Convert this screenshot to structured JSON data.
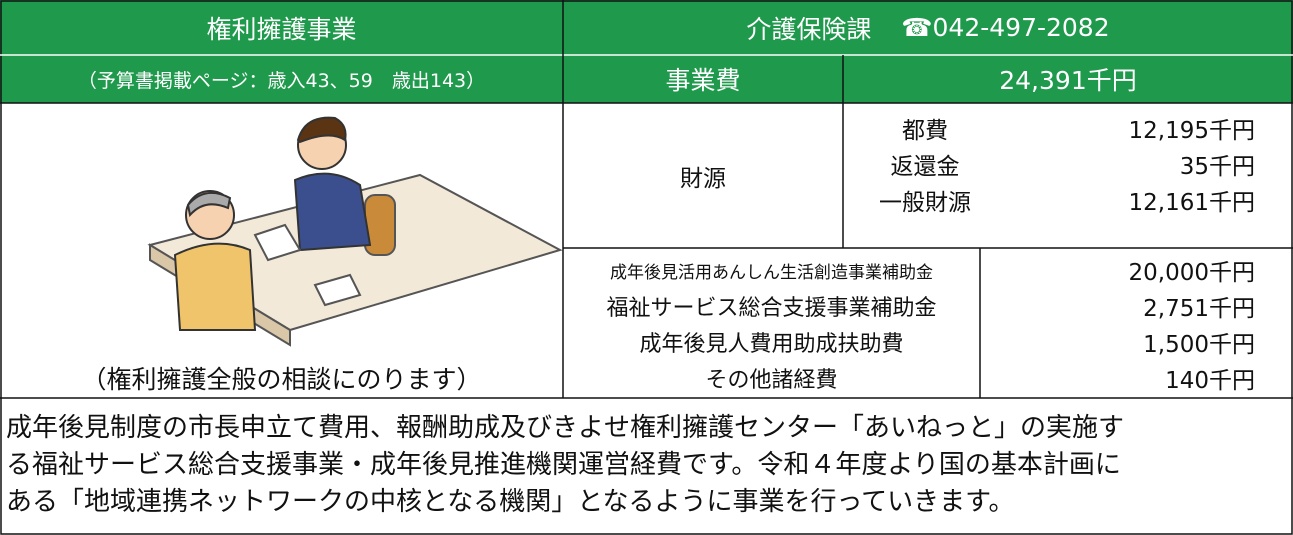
{
  "header": {
    "title": "権利擁護事業",
    "department": "介護保険課",
    "phone": "☎042-497-2082",
    "pages": "（予算書掲載ページ：歳入43、59　歳出143）",
    "cost_label": "事業費",
    "cost": "24,391千円"
  },
  "illustration": {
    "caption": "（権利擁護全般の相談にのります）"
  },
  "funding": {
    "label": "財源",
    "rows": [
      [
        "都費",
        "12,195千円"
      ],
      [
        "返還金",
        "35千円"
      ],
      [
        "一般財源",
        "12,161千円"
      ]
    ]
  },
  "breakdown": {
    "rows": [
      [
        "成年後見活用あんしん生活創造事業補助金",
        "20,000千円"
      ],
      [
        "福祉サービス総合支援事業補助金",
        "2,751千円"
      ],
      [
        "成年後見人費用助成扶助費",
        "1,500千円"
      ],
      [
        "その他諸経費",
        "140千円"
      ]
    ]
  },
  "description": {
    "lines": [
      "成年後見制度の市長申立て費用、報酬助成及びきよせ権利擁護センター「あいねっと」の実施す",
      "る福祉サービス総合支援事業・成年後見推進機関運営経費です。令和４年度より国の基本計画に",
      "ある「地域連携ネットワークの中核となる機関」となるように事業を行っていきます。"
    ]
  }
}
